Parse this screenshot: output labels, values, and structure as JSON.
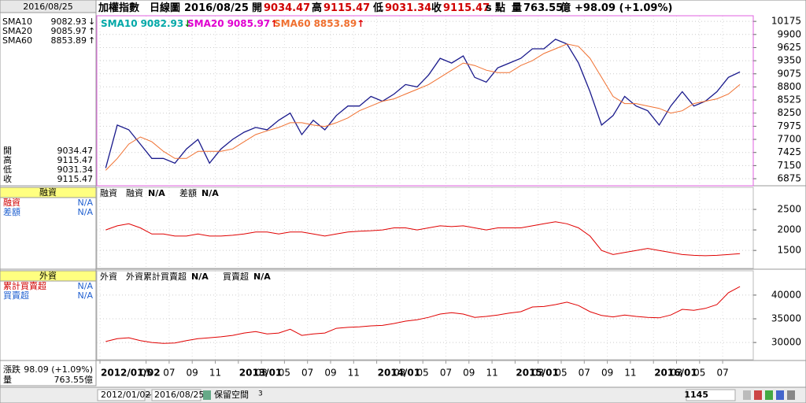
{
  "top_bar": {
    "name": "加權指數",
    "period": "日線圖",
    "date": "2016/08/25",
    "open_label": "開",
    "open": "9034.47",
    "high_label": "高",
    "high": "9115.47",
    "low_label": "低",
    "low": "9031.34",
    "close_label": "收",
    "close": "9115.47",
    "unit_s": "s",
    "unit": "點",
    "volume_label": "量",
    "volume": "763.55",
    "volume_unit": "億",
    "change": "+98.09 (+1.09%)"
  },
  "left_panel": {
    "date": "2016/08/25",
    "sma": [
      {
        "name": "SMA10",
        "value": "9082.93",
        "arrow": "↓"
      },
      {
        "name": "SMA20",
        "value": "9085.97",
        "arrow": "↑"
      },
      {
        "name": "SMA60",
        "value": "8853.89",
        "arrow": "↑"
      }
    ],
    "ohlc": [
      {
        "label": "開",
        "value": "9034.47"
      },
      {
        "label": "高",
        "value": "9115.47"
      },
      {
        "label": "低",
        "value": "9031.34"
      },
      {
        "label": "收",
        "value": "9115.47"
      }
    ],
    "margin": {
      "title": "融資",
      "rows": [
        {
          "label": "融資",
          "value": "N/A"
        },
        {
          "label": "差額",
          "value": "N/A"
        }
      ]
    },
    "foreign": {
      "title": "外資",
      "rows": [
        {
          "label": "累計買賣超",
          "value": "N/A"
        },
        {
          "label": "買賣超",
          "value": "N/A"
        }
      ]
    },
    "change_label": "漲跌",
    "change": "98.09 (+1.09%)",
    "volume_label": "量",
    "volume": "763.55億"
  },
  "x_axis_labels": [
    "2012/01/02",
    "05",
    "07",
    "09",
    "11",
    "2013/01",
    "03",
    "05",
    "07",
    "09",
    "11",
    "2014/01",
    "03",
    "05",
    "07",
    "09",
    "11",
    "2015/01",
    "03",
    "05",
    "07",
    "09",
    "11",
    "2016/01",
    "03",
    "05",
    "07"
  ],
  "chart_data": [
    {
      "type": "line",
      "x": [
        "2012/01",
        "2012/02",
        "2012/03",
        "2012/04",
        "2012/05",
        "2012/06",
        "2012/07",
        "2012/08",
        "2012/09",
        "2012/10",
        "2012/11",
        "2012/12",
        "2013/01",
        "2013/02",
        "2013/03",
        "2013/04",
        "2013/05",
        "2013/06",
        "2013/07",
        "2013/08",
        "2013/09",
        "2013/10",
        "2013/11",
        "2013/12",
        "2014/01",
        "2014/02",
        "2014/03",
        "2014/04",
        "2014/05",
        "2014/06",
        "2014/07",
        "2014/08",
        "2014/09",
        "2014/10",
        "2014/11",
        "2014/12",
        "2015/01",
        "2015/02",
        "2015/03",
        "2015/04",
        "2015/05",
        "2015/06",
        "2015/07",
        "2015/08",
        "2015/09",
        "2015/10",
        "2015/11",
        "2015/12",
        "2016/01",
        "2016/02",
        "2016/03",
        "2016/04",
        "2016/05",
        "2016/06",
        "2016/07",
        "2016/08"
      ],
      "series": [
        {
          "color": "#1a1a8c",
          "values": [
            7100,
            8000,
            7900,
            7600,
            7300,
            7300,
            7200,
            7500,
            7700,
            7200,
            7500,
            7700,
            7850,
            7950,
            7900,
            8100,
            8250,
            7800,
            8100,
            7900,
            8200,
            8400,
            8400,
            8600,
            8500,
            8650,
            8850,
            8800,
            9050,
            9400,
            9300,
            9450,
            9000,
            8900,
            9200,
            9300,
            9400,
            9600,
            9600,
            9800,
            9700,
            9300,
            8700,
            8000,
            8200,
            8600,
            8400,
            8300,
            8000,
            8400,
            8700,
            8400,
            8500,
            8700,
            9000,
            9115
          ]
        },
        {
          "color": "#f07030",
          "values": [
            7050,
            7300,
            7600,
            7750,
            7650,
            7450,
            7300,
            7300,
            7450,
            7450,
            7450,
            7500,
            7650,
            7800,
            7880,
            7950,
            8050,
            8050,
            8000,
            7970,
            8050,
            8150,
            8300,
            8400,
            8500,
            8550,
            8650,
            8750,
            8850,
            9000,
            9150,
            9300,
            9250,
            9150,
            9100,
            9100,
            9250,
            9350,
            9500,
            9600,
            9700,
            9650,
            9400,
            9000,
            8600,
            8450,
            8450,
            8400,
            8350,
            8250,
            8300,
            8450,
            8500,
            8550,
            8650,
            8850
          ]
        }
      ],
      "legend": [
        {
          "name": "SMA10",
          "value": "9082.93",
          "arrow": "↓",
          "color": "#00a8a8",
          "arrow_color": "#008000"
        },
        {
          "name": "SMA20",
          "value": "9085.97",
          "arrow": "↑",
          "color": "#e000d0",
          "arrow_color": "#e00000"
        },
        {
          "name": "SMA60",
          "value": "8853.89",
          "arrow": "↑",
          "color": "#f07030",
          "arrow_color": "#e00000"
        }
      ],
      "ylim": [
        6760,
        10260
      ],
      "yticks": [
        6875,
        7150,
        7425,
        7700,
        7975,
        8250,
        8525,
        8800,
        9075,
        9350,
        9625,
        9900,
        10175
      ],
      "grid": true
    },
    {
      "type": "line",
      "title": "融資",
      "legend": [
        {
          "name": "融資",
          "value": "N/A",
          "color": "#e00000"
        },
        {
          "name": "差額",
          "value": "N/A",
          "color": "#2060d0"
        }
      ],
      "series": [
        {
          "color": "#e00000",
          "values": [
            2000,
            2100,
            2150,
            2050,
            1900,
            1900,
            1850,
            1850,
            1900,
            1850,
            1850,
            1870,
            1900,
            1950,
            1950,
            1900,
            1950,
            1950,
            1900,
            1850,
            1900,
            1950,
            1970,
            1980,
            2000,
            2050,
            2050,
            2000,
            2050,
            2100,
            2080,
            2100,
            2050,
            2000,
            2050,
            2050,
            2050,
            2100,
            2150,
            2200,
            2150,
            2050,
            1850,
            1500,
            1400,
            1450,
            1500,
            1550,
            1500,
            1450,
            1400,
            1380,
            1370,
            1380,
            1400,
            1420
          ]
        }
      ],
      "ylim": [
        1100,
        3000
      ],
      "yticks": [
        1500,
        2000,
        2500
      ]
    },
    {
      "type": "line",
      "title": "外資",
      "legend": [
        {
          "name": "外資累計買賣超",
          "value": "N/A",
          "color": "#e00000"
        },
        {
          "name": "買賣超",
          "value": "N/A",
          "color": "#2060d0"
        }
      ],
      "series": [
        {
          "color": "#e00000",
          "values": [
            30200,
            30800,
            31000,
            30400,
            30000,
            29800,
            29900,
            30400,
            30800,
            31000,
            31200,
            31500,
            32000,
            32300,
            31800,
            32000,
            32800,
            31500,
            31800,
            32000,
            33000,
            33200,
            33300,
            33500,
            33600,
            34000,
            34500,
            34800,
            35300,
            36000,
            36300,
            36000,
            35300,
            35500,
            35800,
            36200,
            36500,
            37500,
            37600,
            38000,
            38500,
            37800,
            36500,
            35700,
            35400,
            35800,
            35500,
            35300,
            35200,
            35800,
            37000,
            36800,
            37200,
            38000,
            40500,
            41800
          ]
        }
      ],
      "ylim": [
        26700,
        44800
      ],
      "yticks": [
        30000,
        35000,
        40000
      ]
    }
  ],
  "status_bar": {
    "start": "2012/01/02",
    "tilde": "~",
    "end": "2016/08/25",
    "reserve_label": "保留空間",
    "reserve": "3",
    "count": "1145"
  }
}
